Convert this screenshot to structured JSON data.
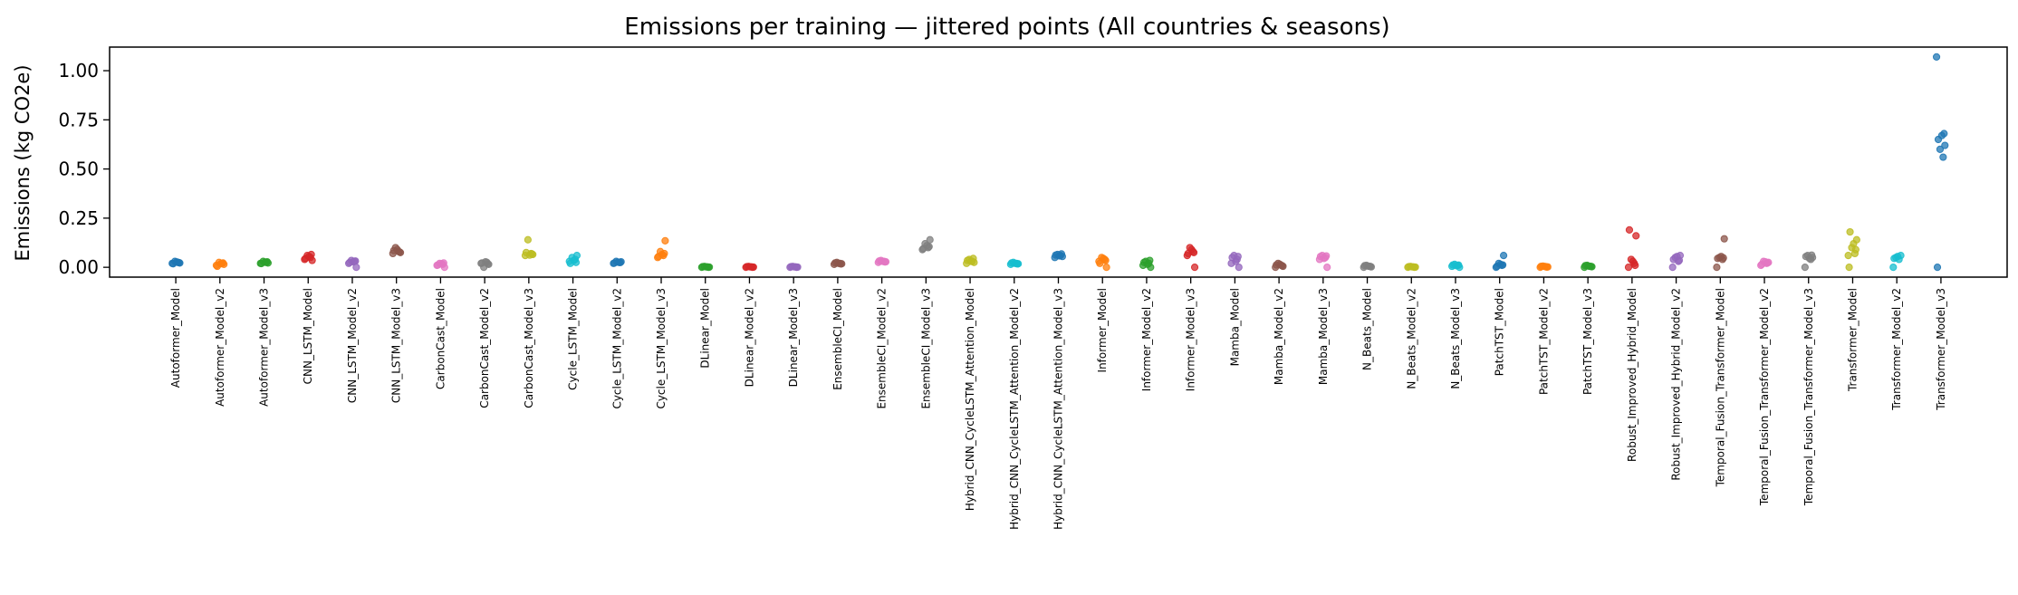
{
  "chart_data": {
    "type": "scatter",
    "title": "Emissions per training — jittered points (All countries & seasons)",
    "xlabel": "",
    "ylabel": "Emissions (kg CO2e)",
    "ylim": [
      -0.05,
      1.12
    ],
    "yticks": [
      0.0,
      0.25,
      0.5,
      0.75,
      1.0
    ],
    "ytick_labels": [
      "0.00",
      "0.25",
      "0.50",
      "0.75",
      "1.00"
    ],
    "grid": false,
    "legend": "none",
    "series": [
      {
        "category": "Autoformer_Model",
        "color": "#1f77b4",
        "values": [
          0.02,
          0.025,
          0.03,
          0.022,
          0.018,
          0.027,
          0.024
        ]
      },
      {
        "category": "Autoformer_Model_v2",
        "color": "#ff7f0e",
        "values": [
          0.01,
          0.02,
          0.025,
          0.015,
          0.005,
          0.018,
          0.022
        ]
      },
      {
        "category": "Autoformer_Model_v3",
        "color": "#2ca02c",
        "values": [
          0.02,
          0.025,
          0.03,
          0.022,
          0.019,
          0.026,
          0.028
        ]
      },
      {
        "category": "CNN_LSTM_Model",
        "color": "#d62728",
        "values": [
          0.04,
          0.05,
          0.06,
          0.035,
          0.045,
          0.055,
          0.065
        ]
      },
      {
        "category": "CNN_LSTM_Model_v2",
        "color": "#9467bd",
        "values": [
          0.02,
          0.03,
          0.035,
          0.0,
          0.025,
          0.028,
          0.032
        ]
      },
      {
        "category": "CNN_LSTM_Model_v3",
        "color": "#8c564b",
        "values": [
          0.07,
          0.08,
          0.1,
          0.075,
          0.085,
          0.09,
          0.078
        ]
      },
      {
        "category": "CarbonCast_Model",
        "color": "#e377c2",
        "values": [
          0.01,
          0.015,
          0.02,
          0.0,
          0.012,
          0.018,
          0.022
        ]
      },
      {
        "category": "CarbonCast_Model_v2",
        "color": "#7f7f7f",
        "values": [
          0.02,
          0.025,
          0.0,
          0.015,
          0.022,
          0.028,
          0.018
        ]
      },
      {
        "category": "CarbonCast_Model_v3",
        "color": "#bcbd22",
        "values": [
          0.06,
          0.07,
          0.14,
          0.065,
          0.075,
          0.062,
          0.068
        ]
      },
      {
        "category": "Cycle_LSTM_Model",
        "color": "#17becf",
        "values": [
          0.03,
          0.04,
          0.05,
          0.06,
          0.02,
          0.035,
          0.025
        ]
      },
      {
        "category": "Cycle_LSTM_Model_v2",
        "color": "#1f77b4",
        "values": [
          0.02,
          0.025,
          0.03,
          0.028,
          0.022,
          0.026,
          0.024
        ]
      },
      {
        "category": "Cycle_LSTM_Model_v3",
        "color": "#ff7f0e",
        "values": [
          0.05,
          0.06,
          0.08,
          0.135,
          0.055,
          0.065,
          0.07
        ]
      },
      {
        "category": "DLinear_Model",
        "color": "#2ca02c",
        "values": [
          0.0,
          0.002,
          0.004,
          0.001,
          0.003,
          0.002,
          0.0
        ]
      },
      {
        "category": "DLinear_Model_v2",
        "color": "#d62728",
        "values": [
          0.0,
          0.002,
          0.004,
          0.001,
          0.003,
          0.002,
          0.0
        ]
      },
      {
        "category": "DLinear_Model_v3",
        "color": "#9467bd",
        "values": [
          0.0,
          0.002,
          0.004,
          0.001,
          0.003,
          0.002,
          0.0
        ]
      },
      {
        "category": "EnsembleCI_Model",
        "color": "#8c564b",
        "values": [
          0.015,
          0.02,
          0.025,
          0.018,
          0.022,
          0.02,
          0.017
        ]
      },
      {
        "category": "EnsembleCI_Model_v2",
        "color": "#e377c2",
        "values": [
          0.025,
          0.03,
          0.035,
          0.028,
          0.032,
          0.03,
          0.027
        ]
      },
      {
        "category": "EnsembleCI_Model_v3",
        "color": "#7f7f7f",
        "values": [
          0.09,
          0.1,
          0.12,
          0.14,
          0.095,
          0.11,
          0.105
        ]
      },
      {
        "category": "Hybrid_CNN_CycleLSTM_Attention_Model",
        "color": "#bcbd22",
        "values": [
          0.02,
          0.03,
          0.04,
          0.025,
          0.035,
          0.03,
          0.045
        ]
      },
      {
        "category": "Hybrid_CNN_CycleLSTM_Attention_Model_v2",
        "color": "#17becf",
        "values": [
          0.015,
          0.02,
          0.025,
          0.018,
          0.022,
          0.02,
          0.017
        ]
      },
      {
        "category": "Hybrid_CNN_CycleLSTM_Attention_Model_v3",
        "color": "#1f77b4",
        "values": [
          0.05,
          0.06,
          0.065,
          0.055,
          0.062,
          0.058,
          0.068
        ]
      },
      {
        "category": "Informer_Model",
        "color": "#ff7f0e",
        "values": [
          0.03,
          0.04,
          0.05,
          0.0,
          0.02,
          0.045,
          0.035
        ]
      },
      {
        "category": "Informer_Model_v2",
        "color": "#2ca02c",
        "values": [
          0.01,
          0.02,
          0.03,
          0.0,
          0.025,
          0.015,
          0.035
        ]
      },
      {
        "category": "Informer_Model_v3",
        "color": "#d62728",
        "values": [
          0.06,
          0.08,
          0.1,
          0.0,
          0.07,
          0.09,
          0.075
        ]
      },
      {
        "category": "Mamba_Model",
        "color": "#9467bd",
        "values": [
          0.02,
          0.04,
          0.06,
          0.0,
          0.05,
          0.03,
          0.055
        ]
      },
      {
        "category": "Mamba_Model_v2",
        "color": "#8c564b",
        "values": [
          0.0,
          0.01,
          0.02,
          0.005,
          0.012,
          0.015,
          0.008
        ]
      },
      {
        "category": "Mamba_Model_v3",
        "color": "#e377c2",
        "values": [
          0.04,
          0.05,
          0.06,
          0.0,
          0.055,
          0.045,
          0.058
        ]
      },
      {
        "category": "N_Beats_Model",
        "color": "#7f7f7f",
        "values": [
          0.0,
          0.005,
          0.01,
          0.002,
          0.008,
          0.006,
          0.004
        ]
      },
      {
        "category": "N_Beats_Model_v2",
        "color": "#bcbd22",
        "values": [
          0.0,
          0.002,
          0.004,
          0.001,
          0.003,
          0.002,
          0.0
        ]
      },
      {
        "category": "N_Beats_Model_v3",
        "color": "#17becf",
        "values": [
          0.005,
          0.01,
          0.015,
          0.0,
          0.012,
          0.008,
          0.011
        ]
      },
      {
        "category": "PatchTST_Model",
        "color": "#1f77b4",
        "values": [
          0.0,
          0.01,
          0.02,
          0.06,
          0.005,
          0.015,
          0.012
        ]
      },
      {
        "category": "PatchTST_Model_v2",
        "color": "#ff7f0e",
        "values": [
          0.0,
          0.003,
          0.006,
          0.002,
          0.005,
          0.004,
          0.001
        ]
      },
      {
        "category": "PatchTST_Model_v3",
        "color": "#2ca02c",
        "values": [
          0.0,
          0.005,
          0.01,
          0.003,
          0.008,
          0.006,
          0.004
        ]
      },
      {
        "category": "Robust_Improved_Hybrid_Model",
        "color": "#d62728",
        "values": [
          0.0,
          0.02,
          0.04,
          0.16,
          0.19,
          0.03,
          0.01
        ]
      },
      {
        "category": "Robust_Improved_Hybrid_Model_v2",
        "color": "#9467bd",
        "values": [
          0.0,
          0.03,
          0.05,
          0.06,
          0.04,
          0.055,
          0.035
        ]
      },
      {
        "category": "Temporal_Fusion_Transformer_Model",
        "color": "#8c564b",
        "values": [
          0.0,
          0.04,
          0.05,
          0.145,
          0.045,
          0.055,
          0.048
        ]
      },
      {
        "category": "Temporal_Fusion_Transformer_Model_v2",
        "color": "#e377c2",
        "values": [
          0.01,
          0.02,
          0.03,
          0.025,
          0.015,
          0.028,
          0.022
        ]
      },
      {
        "category": "Temporal_Fusion_Transformer_Model_v3",
        "color": "#7f7f7f",
        "values": [
          0.0,
          0.04,
          0.06,
          0.05,
          0.055,
          0.045,
          0.062
        ]
      },
      {
        "category": "Transformer_Model",
        "color": "#bcbd22",
        "values": [
          0.0,
          0.07,
          0.1,
          0.14,
          0.18,
          0.12,
          0.09,
          0.06
        ]
      },
      {
        "category": "Transformer_Model_v2",
        "color": "#17becf",
        "values": [
          0.0,
          0.04,
          0.05,
          0.06,
          0.045,
          0.055
        ]
      },
      {
        "category": "Transformer_Model_v3",
        "color": "#1f77b4",
        "values": [
          0.0,
          0.56,
          0.6,
          0.62,
          0.65,
          0.67,
          0.68,
          1.07
        ]
      }
    ]
  }
}
